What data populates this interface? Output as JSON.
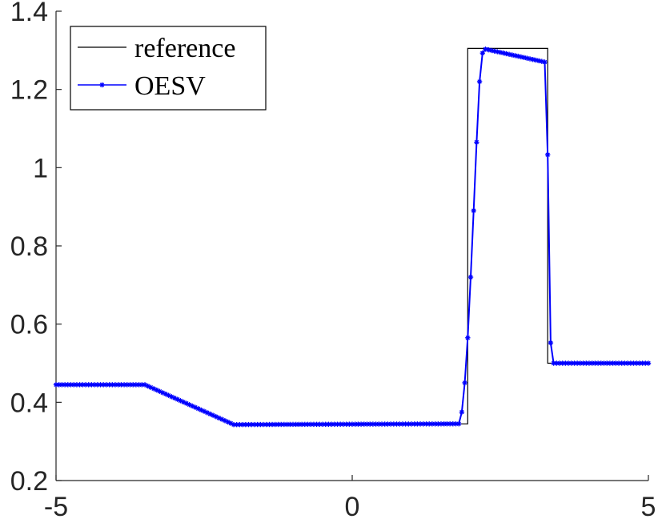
{
  "chart_data": {
    "type": "line",
    "xlim": [
      -5,
      5
    ],
    "ylim": [
      0.2,
      1.4
    ],
    "xticks": [
      "-5",
      "0",
      "5"
    ],
    "yticks": [
      "0.2",
      "0.4",
      "0.6",
      "0.8",
      "1",
      "1.2",
      "1.4"
    ],
    "grid": false,
    "legend_position": "top-left",
    "legend": {
      "reference_label": "reference",
      "oesv_label": "OESV"
    },
    "series": [
      {
        "name": "reference",
        "color": "#000000",
        "marker": "none",
        "x": [
          -5,
          -3.5,
          -2.0,
          1.95,
          1.95,
          3.3,
          3.3,
          5
        ],
        "y": [
          0.445,
          0.445,
          0.345,
          0.345,
          1.305,
          1.305,
          0.5,
          0.5
        ]
      },
      {
        "name": "OESV",
        "color": "#0000ff",
        "marker": "asterisk",
        "x": [
          -5,
          -3.5,
          -2.0,
          1.8,
          1.85,
          1.9,
          1.95,
          2.0,
          2.05,
          2.1,
          2.15,
          2.2,
          2.25,
          3.25,
          3.3,
          3.35,
          3.4,
          5
        ],
        "y": [
          0.445,
          0.445,
          0.343,
          0.345,
          0.375,
          0.45,
          0.565,
          0.72,
          0.89,
          1.065,
          1.22,
          1.293,
          1.303,
          1.27,
          1.033,
          0.552,
          0.5,
          0.5
        ]
      }
    ]
  }
}
